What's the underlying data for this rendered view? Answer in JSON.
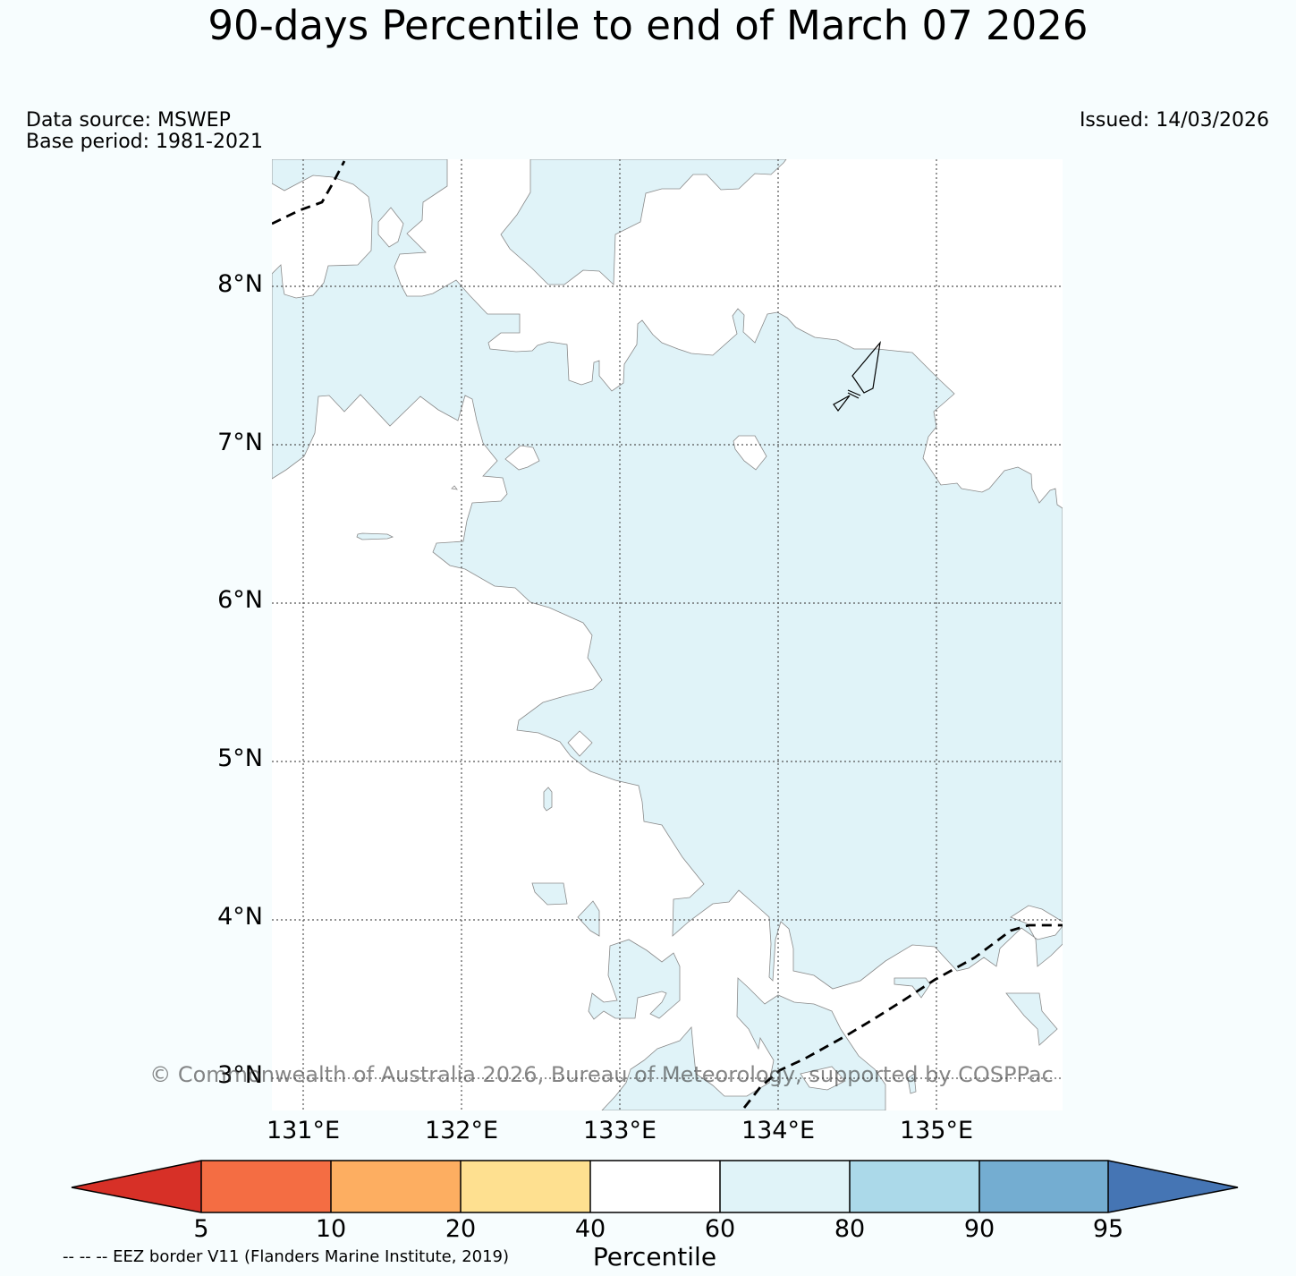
{
  "title": "90-days Percentile to end of March 07 2026",
  "info": {
    "data_source": "Data source: MSWEP",
    "base_period": "Base period: 1981-2021",
    "issued": "Issued: 14/03/2026"
  },
  "axes": {
    "lat_labels": [
      "8°N",
      "7°N",
      "6°N",
      "5°N",
      "4°N",
      "3°N"
    ],
    "lon_labels": [
      "131°E",
      "132°E",
      "133°E",
      "134°E",
      "135°E"
    ]
  },
  "colorbar": {
    "title": "Percentile",
    "ticks": [
      "5",
      "10",
      "20",
      "40",
      "60",
      "80",
      "90",
      "95"
    ],
    "colors": {
      "below_5": "#d73027",
      "5-10": "#f46d43",
      "10-20": "#fdae61",
      "20-40": "#fee090",
      "40-60": "#ffffff",
      "60-80": "#e0f3f8",
      "80-90": "#abd9e9",
      "90-95": "#74add1",
      "above_95": "#4575b4"
    }
  },
  "footer": {
    "eez_note": "-- -- -- EEZ border V11 (Flanders Marine Institute, 2019)",
    "copyright": "© Commonwealth of Australia 2026, Bureau of Meteorology, supported by COSPPac"
  }
}
